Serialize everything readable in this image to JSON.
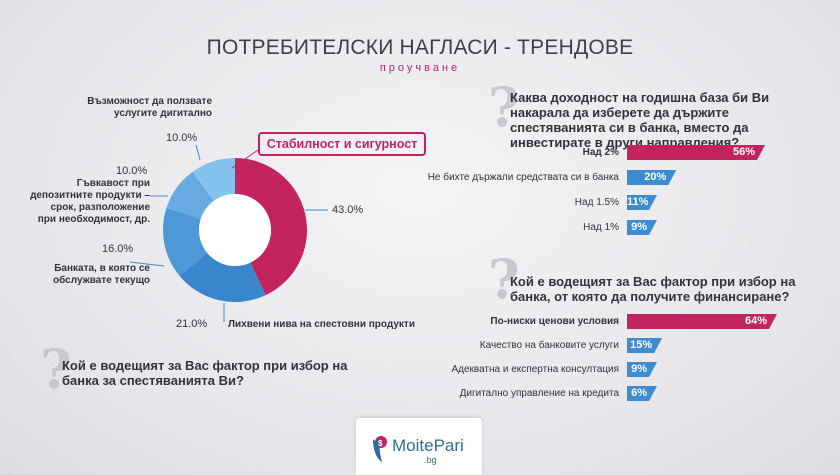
{
  "header": {
    "title": "ПОТРЕБИТЕЛСКИ НАГЛАСИ - ТРЕНДОВЕ",
    "subtitle": "проучване"
  },
  "brand": {
    "logo_text": "MoitePari",
    "logo_sub": ".bg"
  },
  "colors": {
    "magenta": "#c2245e",
    "blue": "#3d8bd0",
    "pie": [
      "#c2245e",
      "#3a86cc",
      "#4e98d8",
      "#68abe2",
      "#86c3ec"
    ]
  },
  "pie_section": {
    "badge": "Стабилност и сигурност",
    "question": "Кой е водещият за Вас фактор при избор на банка за спестяванията Ви?"
  },
  "bars_top": {
    "question": "Каква доходност на годишна база би Ви накарала да изберете да държите спестяванията си в банка, вместо да инвестирате в други направления?"
  },
  "bars_bottom": {
    "question": "Кой е водещият за Вас фактор при избор на банка, от която да получите финансиране?"
  },
  "chart_data": [
    {
      "type": "pie",
      "title": "Кой е водещият за Вас фактор при избор на банка за спестяванията Ви?",
      "slices": [
        {
          "label": "Стабилност и сигурност",
          "value": 43.0,
          "value_label": "43.0%"
        },
        {
          "label": "Лихвени нива на спестовни продукти",
          "value": 21.0,
          "value_label": "21.0%"
        },
        {
          "label": "Банката, в която се обслужвате текущо",
          "value": 16.0,
          "value_label": "16.0%"
        },
        {
          "label": "Гъвкавост при депозитните продукти – срок, разположение при необходимост, др.",
          "value": 10.0,
          "value_label": "10.0%"
        },
        {
          "label": "Възможност да ползвате услугите дигитално",
          "value": 10.0,
          "value_label": "10.0%"
        }
      ]
    },
    {
      "type": "bar",
      "orientation": "horizontal",
      "title": "Каква доходност на годишна база би Ви накарала да изберете да държите спестяванията си в банка, вместо да инвестирате в други направления?",
      "categories": [
        "Над 2%",
        "Не бихте държали средствата си в банка",
        "Над 1.5%",
        "Над 1%"
      ],
      "values": [
        56,
        20,
        11,
        9
      ],
      "value_labels": [
        "56%",
        "20%",
        "11%",
        "9%"
      ],
      "xlim": [
        0,
        56
      ]
    },
    {
      "type": "bar",
      "orientation": "horizontal",
      "title": "Кой е водещият за Вас фактор при избор на банка, от която да получите финансиране?",
      "categories": [
        "По-ниски ценови условия",
        "Качество на банковите услуги",
        "Адекватна и експертна консултация",
        "Дигитално управление на кредита"
      ],
      "values": [
        64,
        15,
        9,
        6
      ],
      "value_labels": [
        "64%",
        "15%",
        "9%",
        "6%"
      ],
      "xlim": [
        0,
        64
      ]
    }
  ]
}
